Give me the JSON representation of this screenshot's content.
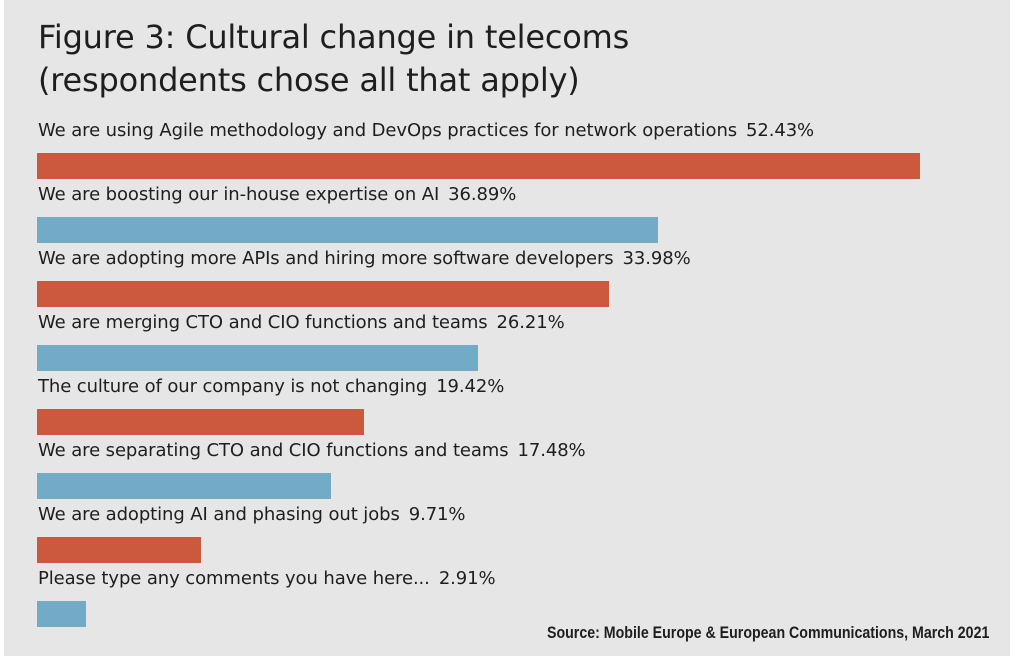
{
  "title": {
    "line1": "Figure 3: Cultural change in telecoms",
    "line2": "(respondents chose all that apply)"
  },
  "source": "Source: Mobile Europe & European Communications, March 2021",
  "colors": {
    "background": "#e6e6e6",
    "orange": "#ca593d",
    "blue": "#71abc6",
    "text": "#1e1e1e"
  },
  "chart_data": {
    "type": "bar",
    "orientation": "horizontal",
    "title": "Figure 3: Cultural change in telecoms (respondents chose all that apply)",
    "categories": [
      "We are using Agile methodology and DevOps practices for network operations",
      "We are boosting our in-house expertise on AI",
      "We are adopting more APIs and hiring more software developers",
      "We are merging CTO and CIO functions and teams",
      "The culture of our company is not changing",
      "We are separating CTO and CIO functions and teams",
      "We are adopting AI and phasing out jobs",
      "Please type any comments you have here..."
    ],
    "values": [
      52.43,
      36.89,
      33.98,
      26.21,
      19.42,
      17.48,
      9.71,
      2.91
    ],
    "labels": [
      "52.43%",
      "36.89%",
      "33.98%",
      "26.21%",
      "19.42%",
      "17.48%",
      "9.71%",
      "2.91%"
    ],
    "bar_colors": [
      "orange",
      "blue",
      "orange",
      "blue",
      "orange",
      "blue",
      "orange",
      "blue"
    ],
    "unit": "%",
    "xlim": [
      0,
      52.43
    ],
    "grid": false,
    "legend": "none"
  }
}
